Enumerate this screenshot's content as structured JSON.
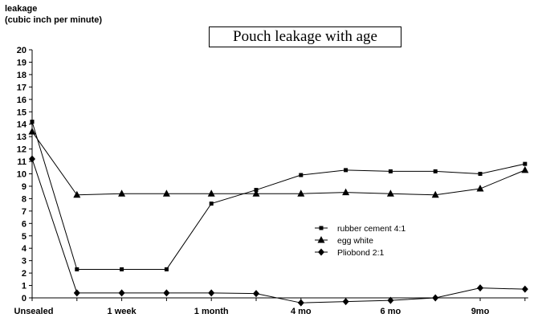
{
  "chart_data": {
    "type": "line",
    "title": "Pouch leakage with age",
    "ylabel_lines": [
      "leakage",
      "(cubic inch per minute)"
    ],
    "xlabel": "",
    "ylim": [
      0,
      20
    ],
    "yticks": [
      0,
      1,
      2,
      3,
      4,
      5,
      6,
      7,
      8,
      9,
      10,
      11,
      12,
      13,
      14,
      15,
      16,
      17,
      18,
      19,
      20
    ],
    "x_count": 12,
    "xtick_labels": [
      {
        "index": 0,
        "label": "Unsealed"
      },
      {
        "index": 2,
        "label": "1 week"
      },
      {
        "index": 4,
        "label": "1 month"
      },
      {
        "index": 6,
        "label": "4 mo"
      },
      {
        "index": 8,
        "label": "6 mo"
      },
      {
        "index": 10,
        "label": "9mo"
      }
    ],
    "legend_position": "right",
    "series": [
      {
        "name": "rubber cement 4:1",
        "marker": "square",
        "values": [
          14.2,
          2.3,
          2.3,
          2.3,
          7.6,
          8.7,
          9.9,
          10.3,
          10.2,
          10.2,
          10.0,
          10.8
        ]
      },
      {
        "name": "egg white",
        "marker": "triangle",
        "values": [
          13.4,
          8.3,
          8.4,
          8.4,
          8.4,
          8.4,
          8.4,
          8.5,
          8.4,
          8.3,
          8.8,
          10.3
        ]
      },
      {
        "name": "Pliobond 2:1",
        "marker": "diamond",
        "values": [
          11.2,
          0.4,
          0.4,
          0.4,
          0.4,
          0.35,
          -0.4,
          -0.3,
          -0.2,
          0.0,
          0.8,
          0.7
        ]
      }
    ]
  }
}
